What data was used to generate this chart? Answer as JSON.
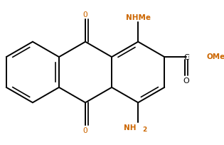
{
  "background_color": "#ffffff",
  "bond_color": "#000000",
  "nhme_color": "#cc6600",
  "ome_color": "#cc6600",
  "nh2_color": "#cc6600",
  "o_color": "#cc6600",
  "text_color": "#000000",
  "figsize": [
    3.15,
    2.05
  ],
  "dpi": 100,
  "xlim": [
    -2.3,
    2.8
  ],
  "ylim": [
    -1.6,
    1.6
  ]
}
